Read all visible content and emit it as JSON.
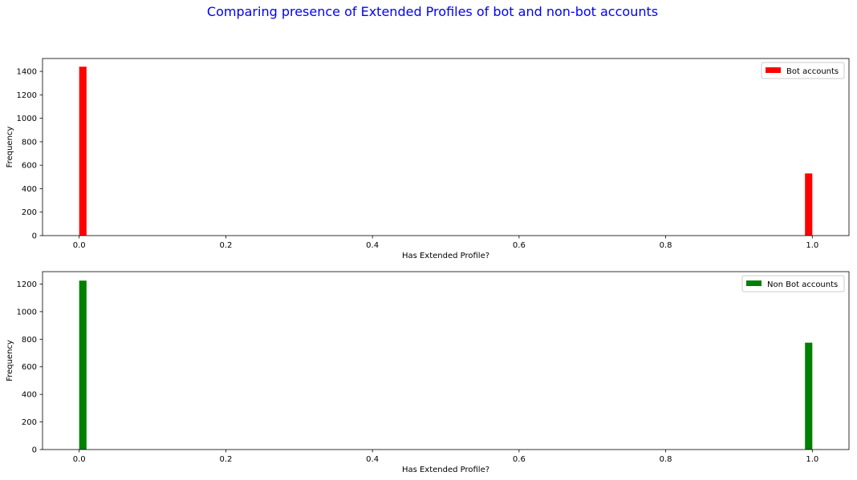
{
  "figure": {
    "suptitle": "Comparing presence of Extended Profiles of bot and non-bot accounts",
    "suptitle_color": "#0000ff"
  },
  "chart_data": [
    {
      "type": "bar",
      "subtype": "histogram",
      "title": "",
      "xlabel": "Has Extended Profile?",
      "ylabel": "Frequency",
      "xlim": [
        -0.05,
        1.05
      ],
      "ylim": [
        0,
        1510
      ],
      "xticks": [
        0.0,
        0.2,
        0.4,
        0.6,
        0.8,
        1.0
      ],
      "xtick_labels": [
        "0.0",
        "0.2",
        "0.4",
        "0.6",
        "0.8",
        "1.0"
      ],
      "yticks": [
        0,
        200,
        400,
        600,
        800,
        1000,
        1200,
        1400
      ],
      "ytick_labels": [
        "0",
        "200",
        "400",
        "600",
        "800",
        "1000",
        "1200",
        "1400"
      ],
      "grid": false,
      "legend_position": "top-right",
      "series": [
        {
          "name": "Bot accounts",
          "color": "#ff0000",
          "bins": [
            {
              "x_start": 0.0,
              "x_end": 0.01,
              "value": 1440
            },
            {
              "x_start": 0.99,
              "x_end": 1.0,
              "value": 530
            }
          ]
        }
      ]
    },
    {
      "type": "bar",
      "subtype": "histogram",
      "title": "",
      "xlabel": "Has Extended Profile?",
      "ylabel": "Frequency",
      "xlim": [
        -0.05,
        1.05
      ],
      "ylim": [
        0,
        1290
      ],
      "xticks": [
        0.0,
        0.2,
        0.4,
        0.6,
        0.8,
        1.0
      ],
      "xtick_labels": [
        "0.0",
        "0.2",
        "0.4",
        "0.6",
        "0.8",
        "1.0"
      ],
      "yticks": [
        0,
        200,
        400,
        600,
        800,
        1000,
        1200
      ],
      "ytick_labels": [
        "0",
        "200",
        "400",
        "600",
        "800",
        "1000",
        "1200"
      ],
      "grid": false,
      "legend_position": "top-right",
      "series": [
        {
          "name": "Non Bot accounts",
          "color": "#008000",
          "bins": [
            {
              "x_start": 0.0,
              "x_end": 0.01,
              "value": 1225
            },
            {
              "x_start": 0.99,
              "x_end": 1.0,
              "value": 775
            }
          ]
        }
      ]
    }
  ]
}
